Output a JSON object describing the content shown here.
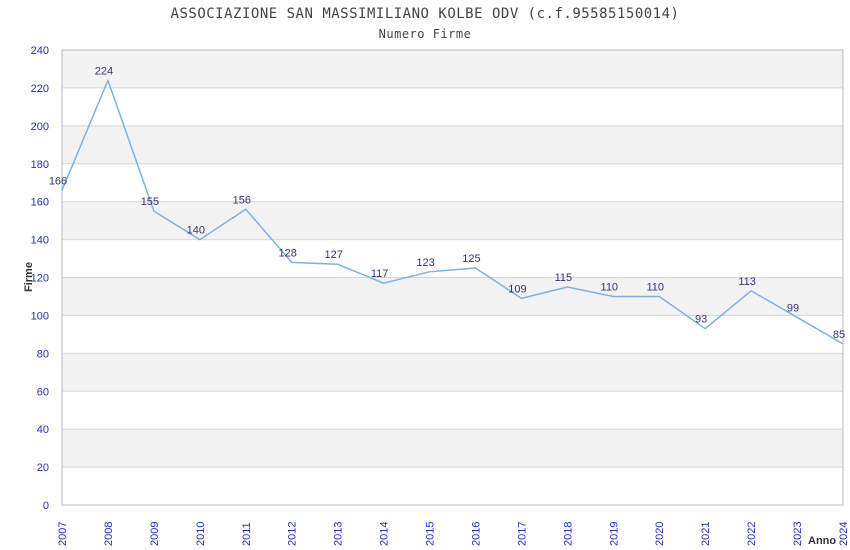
{
  "header": {
    "title": "ASSOCIAZIONE SAN MASSIMILIANO KOLBE ODV (c.f.95585150014)",
    "subtitle": "Numero Firme"
  },
  "chart_data": {
    "type": "line",
    "title": "ASSOCIAZIONE SAN MASSIMILIANO KOLBE ODV (c.f.95585150014)",
    "subtitle": "Numero Firme",
    "xlabel": "Anno",
    "ylabel": "Firme",
    "categories": [
      "2007",
      "2008",
      "2009",
      "2010",
      "2011",
      "2012",
      "2013",
      "2014",
      "2015",
      "2016",
      "2017",
      "2018",
      "2019",
      "2020",
      "2021",
      "2022",
      "2023",
      "2024"
    ],
    "series": [
      {
        "name": "Numero Firme",
        "values": [
          166,
          224,
          155,
          140,
          156,
          128,
          127,
          117,
          123,
          125,
          109,
          115,
          110,
          110,
          93,
          113,
          99,
          85
        ]
      }
    ],
    "ylim": [
      0,
      240
    ],
    "ytick_step": 20,
    "grid": "horizontal-bands-alternating",
    "legend": "none",
    "data_labels": "above-points",
    "colors": {
      "line": "#7fb0e4",
      "tick_labels": "#2a2ac9",
      "data_labels": "#333377",
      "axis_titles": "#333333",
      "title": "#444444",
      "band_gray": "#f2f2f2",
      "band_white": "#ffffff",
      "gridline": "#d6d6d6",
      "border": "#bbbbbb",
      "background": "#ffffff"
    }
  }
}
